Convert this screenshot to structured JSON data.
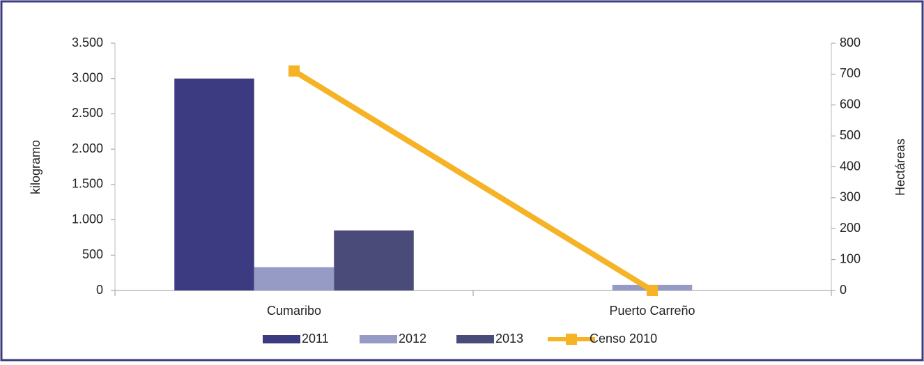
{
  "chart_data": {
    "type": "bar",
    "categories": [
      "Cumaribo",
      "Puerto Carreño"
    ],
    "series": [
      {
        "name": "2011",
        "color": "#3c3a80",
        "values": [
          3000,
          0
        ]
      },
      {
        "name": "2012",
        "color": "#959bc4",
        "values": [
          330,
          80
        ]
      },
      {
        "name": "2013",
        "color": "#4b4b7a",
        "values": [
          850,
          0
        ]
      },
      {
        "name": "Censo 2010",
        "color": "#f5b325",
        "type": "line",
        "axis": "y2",
        "values": [
          710,
          0
        ]
      }
    ],
    "ylabel": "kilogramo",
    "y2label": "Hectáreas",
    "ylim": [
      0,
      3500
    ],
    "yticks": [
      0,
      500,
      {
        "value": 1000,
        "label": "1.000"
      },
      {
        "value": 1500,
        "label": "1.500"
      },
      {
        "value": 2000,
        "label": "2.000"
      },
      {
        "value": 2500,
        "label": "2.500"
      },
      {
        "value": 3000,
        "label": "3.000"
      },
      {
        "value": 3500,
        "label": "3.500"
      }
    ],
    "y2lim": [
      0,
      800
    ],
    "y2ticks": [
      0,
      100,
      200,
      300,
      400,
      500,
      600,
      700,
      800
    ],
    "legend": "bottom"
  }
}
